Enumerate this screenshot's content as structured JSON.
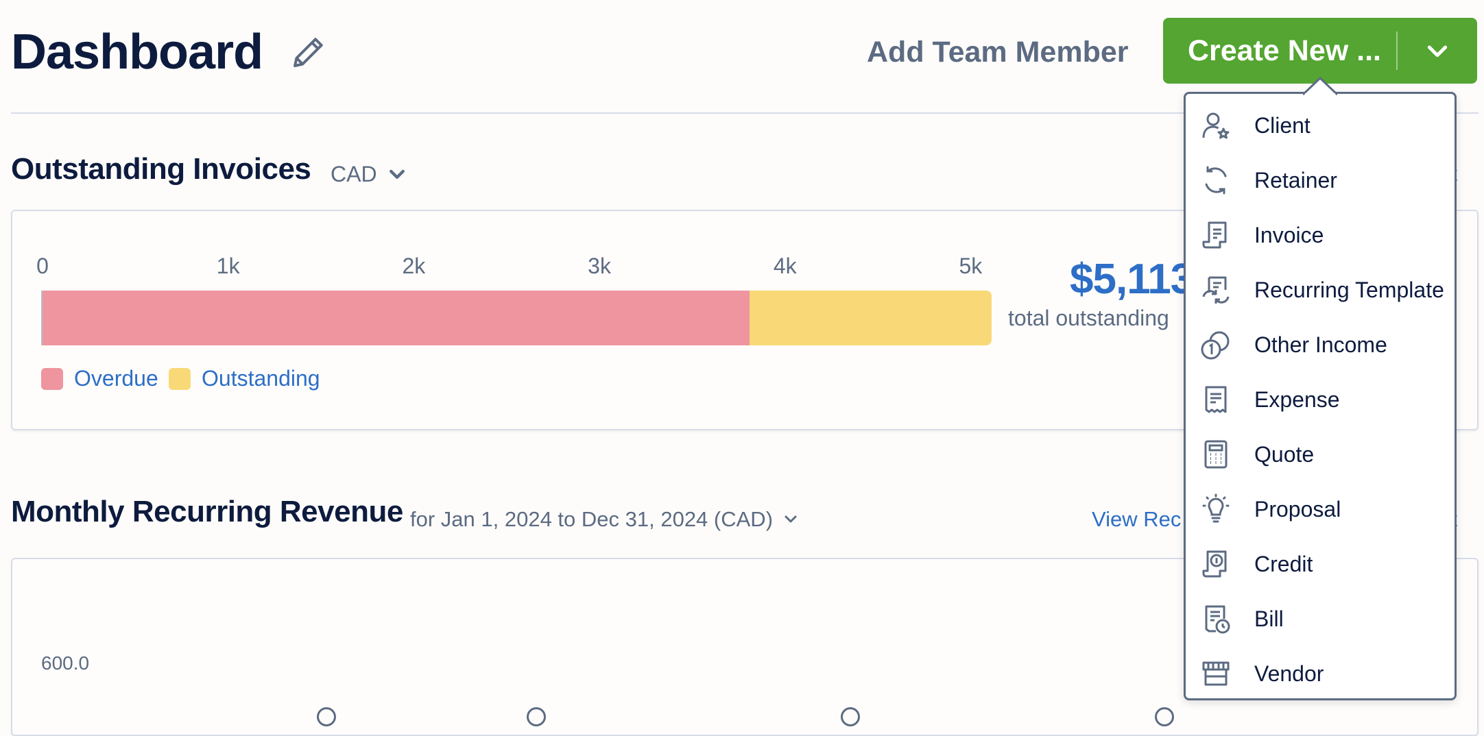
{
  "header": {
    "title": "Dashboard",
    "add_team_member": "Add Team Member",
    "create_new": "Create New ..."
  },
  "outstanding": {
    "title": "Outstanding Invoices",
    "currency": "CAD",
    "total_amount": "$5,113",
    "total_label": "total outstanding",
    "legend": [
      "Overdue",
      "Outstanding"
    ],
    "right_link_partial": "rt"
  },
  "chart_data": {
    "type": "bar",
    "orientation": "horizontal",
    "stacked": true,
    "categories": [
      "Outstanding Invoices"
    ],
    "series": [
      {
        "name": "Overdue",
        "values": [
          3810
        ]
      },
      {
        "name": "Outstanding",
        "values": [
          1303
        ]
      }
    ],
    "tick_labels": [
      "0",
      "1k",
      "2k",
      "3k",
      "4k",
      "5k"
    ],
    "xlim": [
      0,
      5113
    ],
    "legend_position": "bottom-left",
    "colors": {
      "Overdue": "#ee959f",
      "Outstanding": "#f9d977"
    }
  },
  "mrr": {
    "title": "Monthly Recurring Revenue",
    "range": "for Jan 1, 2024 to Dec 31, 2024 (CAD)",
    "view_link_partial": "View Rec",
    "right_link_partial": "rt",
    "y_tick": "600.0"
  },
  "menu": {
    "items": [
      {
        "label": "Client",
        "icon": "client-icon"
      },
      {
        "label": "Retainer",
        "icon": "retainer-icon"
      },
      {
        "label": "Invoice",
        "icon": "invoice-icon"
      },
      {
        "label": "Recurring Template",
        "icon": "recurring-template-icon"
      },
      {
        "label": "Other Income",
        "icon": "other-income-icon"
      },
      {
        "label": "Expense",
        "icon": "expense-icon"
      },
      {
        "label": "Quote",
        "icon": "quote-icon"
      },
      {
        "label": "Proposal",
        "icon": "proposal-icon"
      },
      {
        "label": "Credit",
        "icon": "credit-icon"
      },
      {
        "label": "Bill",
        "icon": "bill-icon"
      },
      {
        "label": "Vendor",
        "icon": "vendor-icon"
      }
    ]
  },
  "colors": {
    "accent_green": "#54a531",
    "link_blue": "#2d6ec7",
    "overdue": "#ee959f",
    "outstanding": "#f9d977"
  }
}
